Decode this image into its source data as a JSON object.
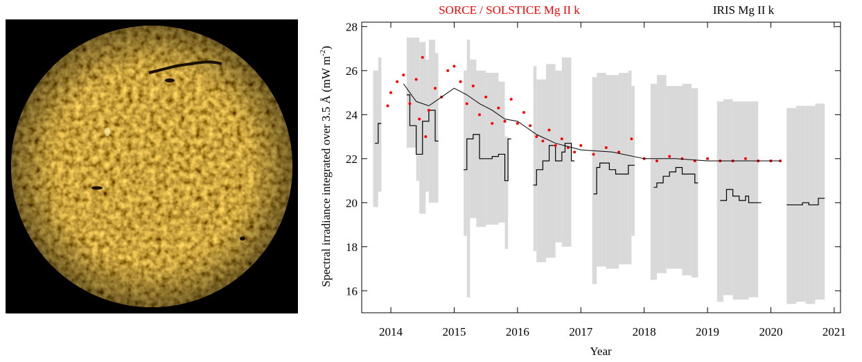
{
  "chart_data": {
    "type": "line",
    "titles": [
      {
        "text": "SORCE / SOLSTICE Mg II k",
        "color": "#ff0000"
      },
      {
        "text": "IRIS Mg II k",
        "color": "#000000"
      }
    ],
    "x_label": "Year",
    "y_label": "Spectral irradiance integrated over 3.5 Å  (mW m",
    "y_label_sup": "-2",
    "y_label_end": ")",
    "xlim": [
      2013.54,
      2021.1
    ],
    "xticks": [
      2014,
      2015,
      2016,
      2017,
      2018,
      2019,
      2020,
      2021
    ],
    "ylim": [
      15,
      28.2
    ],
    "yticks": [
      16,
      18,
      20,
      22,
      24,
      26,
      28
    ],
    "series": [
      {
        "kind": "band",
        "color": "#d9d9d9",
        "x": [
          2013.72,
          2013.8,
          2013.85,
          2014.25,
          2014.4,
          2014.45,
          2014.55,
          2014.6,
          2014.7,
          2014.75,
          2015.15,
          2015.2,
          2015.25,
          2015.35,
          2015.5,
          2015.7,
          2015.8,
          2015.85,
          2016.25,
          2016.3,
          2016.45,
          2016.6,
          2016.7,
          2016.85,
          2017.18,
          2017.25,
          2017.4,
          2017.6,
          2017.75,
          2017.8,
          2017.85,
          2018.1,
          2018.2,
          2018.35,
          2018.6,
          2018.75,
          2018.85,
          2019.15,
          2019.25,
          2019.4,
          2019.65,
          2019.8,
          2020.25,
          2020.4,
          2020.55,
          2020.7,
          2020.85
        ],
        "low": [
          19.8,
          20.5,
          null,
          22.5,
          21.0,
          19.5,
          20.5,
          20.0,
          20.0,
          null,
          18.5,
          15.7,
          19.3,
          18.9,
          19.0,
          19.1,
          17.9,
          null,
          17.8,
          17.3,
          17.5,
          18.2,
          18.0,
          null,
          16.3,
          17.1,
          17.0,
          17.2,
          17.2,
          18.5,
          null,
          16.5,
          16.8,
          17.0,
          16.7,
          16.6,
          null,
          15.5,
          15.8,
          15.6,
          15.7,
          null,
          15.4,
          15.5,
          15.4,
          15.6,
          null
        ],
        "high": [
          26.0,
          26.6,
          null,
          27.5,
          27.5,
          27.3,
          26.5,
          27.4,
          26.8,
          null,
          26.0,
          27.4,
          26.5,
          26.0,
          25.9,
          25.5,
          23.0,
          null,
          26.2,
          25.6,
          26.3,
          26.0,
          26.6,
          null,
          25.7,
          25.9,
          25.8,
          25.9,
          26.0,
          25.3,
          null,
          25.4,
          25.8,
          25.3,
          25.4,
          25.2,
          null,
          24.6,
          24.7,
          24.6,
          24.6,
          null,
          24.3,
          24.4,
          24.4,
          24.5,
          null
        ]
      },
      {
        "kind": "step",
        "name": "IRIS Mg II k",
        "color": "#000000",
        "x": [
          2013.75,
          2013.8,
          2013.85,
          2014.25,
          2014.3,
          2014.4,
          2014.5,
          2014.6,
          2014.7,
          2014.75,
          2015.15,
          2015.2,
          2015.3,
          2015.4,
          2015.6,
          2015.7,
          2015.8,
          2015.85,
          2015.9,
          2016.25,
          2016.3,
          2016.4,
          2016.5,
          2016.6,
          2016.7,
          2016.75,
          2016.85,
          2016.9,
          2017.2,
          2017.25,
          2017.3,
          2017.45,
          2017.55,
          2017.7,
          2017.75,
          2017.85,
          2018.15,
          2018.2,
          2018.3,
          2018.4,
          2018.5,
          2018.6,
          2018.8,
          2018.85,
          2019.2,
          2019.3,
          2019.4,
          2019.5,
          2019.6,
          2019.65,
          2019.85,
          2020.25,
          2020.4,
          2020.5,
          2020.6,
          2020.7,
          2020.75,
          2020.85
        ],
        "values": [
          22.7,
          23.6,
          null,
          24.9,
          23.5,
          22.2,
          23.7,
          24.2,
          22.8,
          null,
          21.5,
          22.9,
          23.1,
          22.0,
          22.1,
          22.2,
          21.0,
          22.9,
          null,
          20.8,
          21.5,
          21.9,
          22.6,
          21.9,
          22.3,
          22.7,
          21.9,
          null,
          20.4,
          21.6,
          21.8,
          21.5,
          21.3,
          21.3,
          21.7,
          null,
          20.7,
          20.9,
          21.2,
          21.4,
          21.6,
          21.3,
          20.9,
          null,
          20.1,
          20.6,
          20.3,
          20.1,
          20.3,
          20.0,
          null,
          19.9,
          19.9,
          20.0,
          19.9,
          19.9,
          20.2,
          null
        ]
      },
      {
        "kind": "scatter",
        "name": "SORCE / SOLSTICE Mg II k",
        "color": "#ff0000",
        "x": [
          2013.95,
          2014.0,
          2014.1,
          2014.2,
          2014.3,
          2014.4,
          2014.45,
          2014.5,
          2014.55,
          2014.6,
          2014.7,
          2014.8,
          2014.9,
          2015.0,
          2015.1,
          2015.2,
          2015.3,
          2015.4,
          2015.5,
          2015.6,
          2015.7,
          2015.8,
          2015.9,
          2016.0,
          2016.1,
          2016.2,
          2016.3,
          2016.4,
          2016.5,
          2016.6,
          2016.7,
          2016.8,
          2016.9,
          2017.0,
          2017.2,
          2017.4,
          2017.6,
          2017.8,
          2018.0,
          2018.2,
          2018.4,
          2018.6,
          2018.8,
          2019.0,
          2019.2,
          2019.4,
          2019.6,
          2019.8,
          2020.0,
          2020.15
        ],
        "values": [
          24.4,
          25.0,
          25.5,
          25.8,
          24.5,
          25.6,
          23.8,
          26.6,
          23.0,
          24.2,
          25.2,
          24.8,
          26.0,
          26.2,
          25.5,
          24.5,
          25.3,
          24.0,
          24.8,
          23.6,
          24.3,
          23.7,
          24.7,
          23.6,
          24.1,
          23.5,
          23.0,
          22.8,
          23.3,
          22.6,
          22.9,
          22.5,
          22.3,
          22.6,
          22.2,
          22.5,
          22.3,
          22.9,
          22.0,
          21.9,
          22.1,
          22.0,
          21.9,
          22.0,
          21.9,
          21.9,
          22.0,
          21.9,
          21.9,
          21.9
        ]
      },
      {
        "kind": "line",
        "color": "#000000",
        "x": [
          2014.2,
          2014.4,
          2014.6,
          2014.8,
          2015.0,
          2015.2,
          2015.4,
          2015.6,
          2015.8,
          2016.0,
          2016.3,
          2016.6,
          2017.0,
          2017.5,
          2018.0,
          2018.5,
          2019.0,
          2020.0,
          2020.15
        ],
        "values": [
          25.4,
          24.6,
          24.4,
          24.8,
          25.2,
          24.9,
          24.5,
          24.2,
          23.8,
          23.7,
          23.1,
          22.7,
          22.4,
          22.3,
          22.0,
          22.0,
          21.9,
          21.9,
          21.9
        ]
      }
    ]
  }
}
